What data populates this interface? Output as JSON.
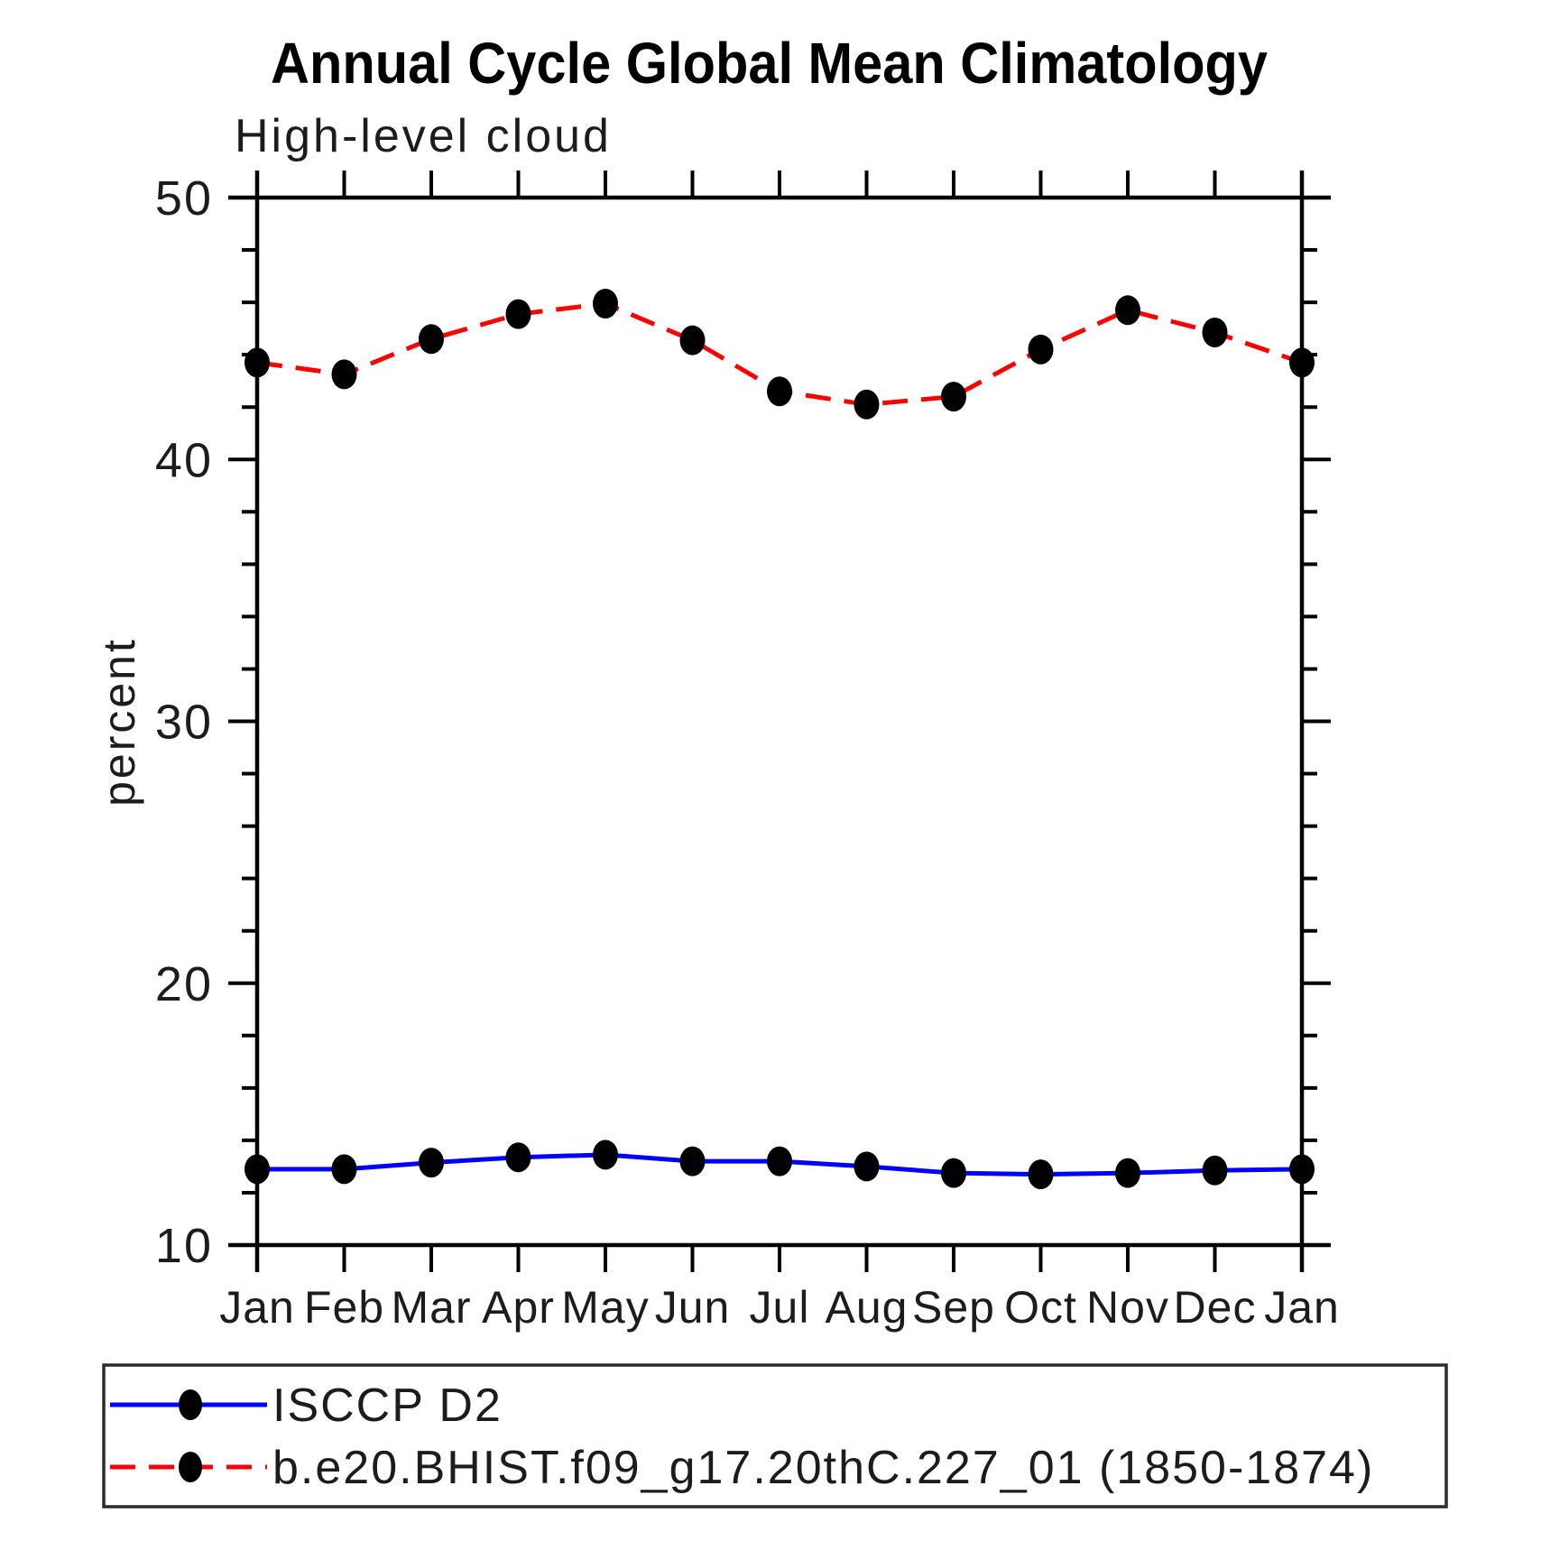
{
  "figure": {
    "background_color": "#ffffff",
    "axis_color": "#000000"
  },
  "chart_data": {
    "type": "line",
    "title": "Annual Cycle Global Mean Climatology",
    "subtitle": "High-level cloud",
    "xlabel": "",
    "ylabel": "percent",
    "ylim": [
      10,
      50
    ],
    "y_major_ticks": [
      10,
      20,
      30,
      40,
      50
    ],
    "y_minor_tick_step": 2,
    "grid": false,
    "legend_position": "bottom-left-box",
    "categories": [
      "Jan",
      "Feb",
      "Mar",
      "Apr",
      "May",
      "Jun",
      "Jul",
      "Aug",
      "Sep",
      "Oct",
      "Nov",
      "Dec",
      "Jan"
    ],
    "series": [
      {
        "name": "ISCCP D2",
        "line_style": "solid",
        "line_color": "#0000ff",
        "marker": "filled-circle",
        "marker_color": "#000000",
        "values": [
          12.9,
          12.9,
          13.15,
          13.35,
          13.45,
          13.2,
          13.2,
          13.0,
          12.75,
          12.7,
          12.75,
          12.85,
          12.9
        ]
      },
      {
        "name": "b.e20.BHIST.f09_g17.20thC.227_01 (1850-1874)",
        "line_style": "dashed",
        "line_color": "#ff0000",
        "marker": "filled-circle",
        "marker_color": "#000000",
        "values": [
          43.7,
          43.25,
          44.6,
          45.55,
          45.95,
          44.55,
          42.6,
          42.1,
          42.4,
          44.2,
          45.7,
          44.85,
          43.7
        ]
      }
    ]
  }
}
